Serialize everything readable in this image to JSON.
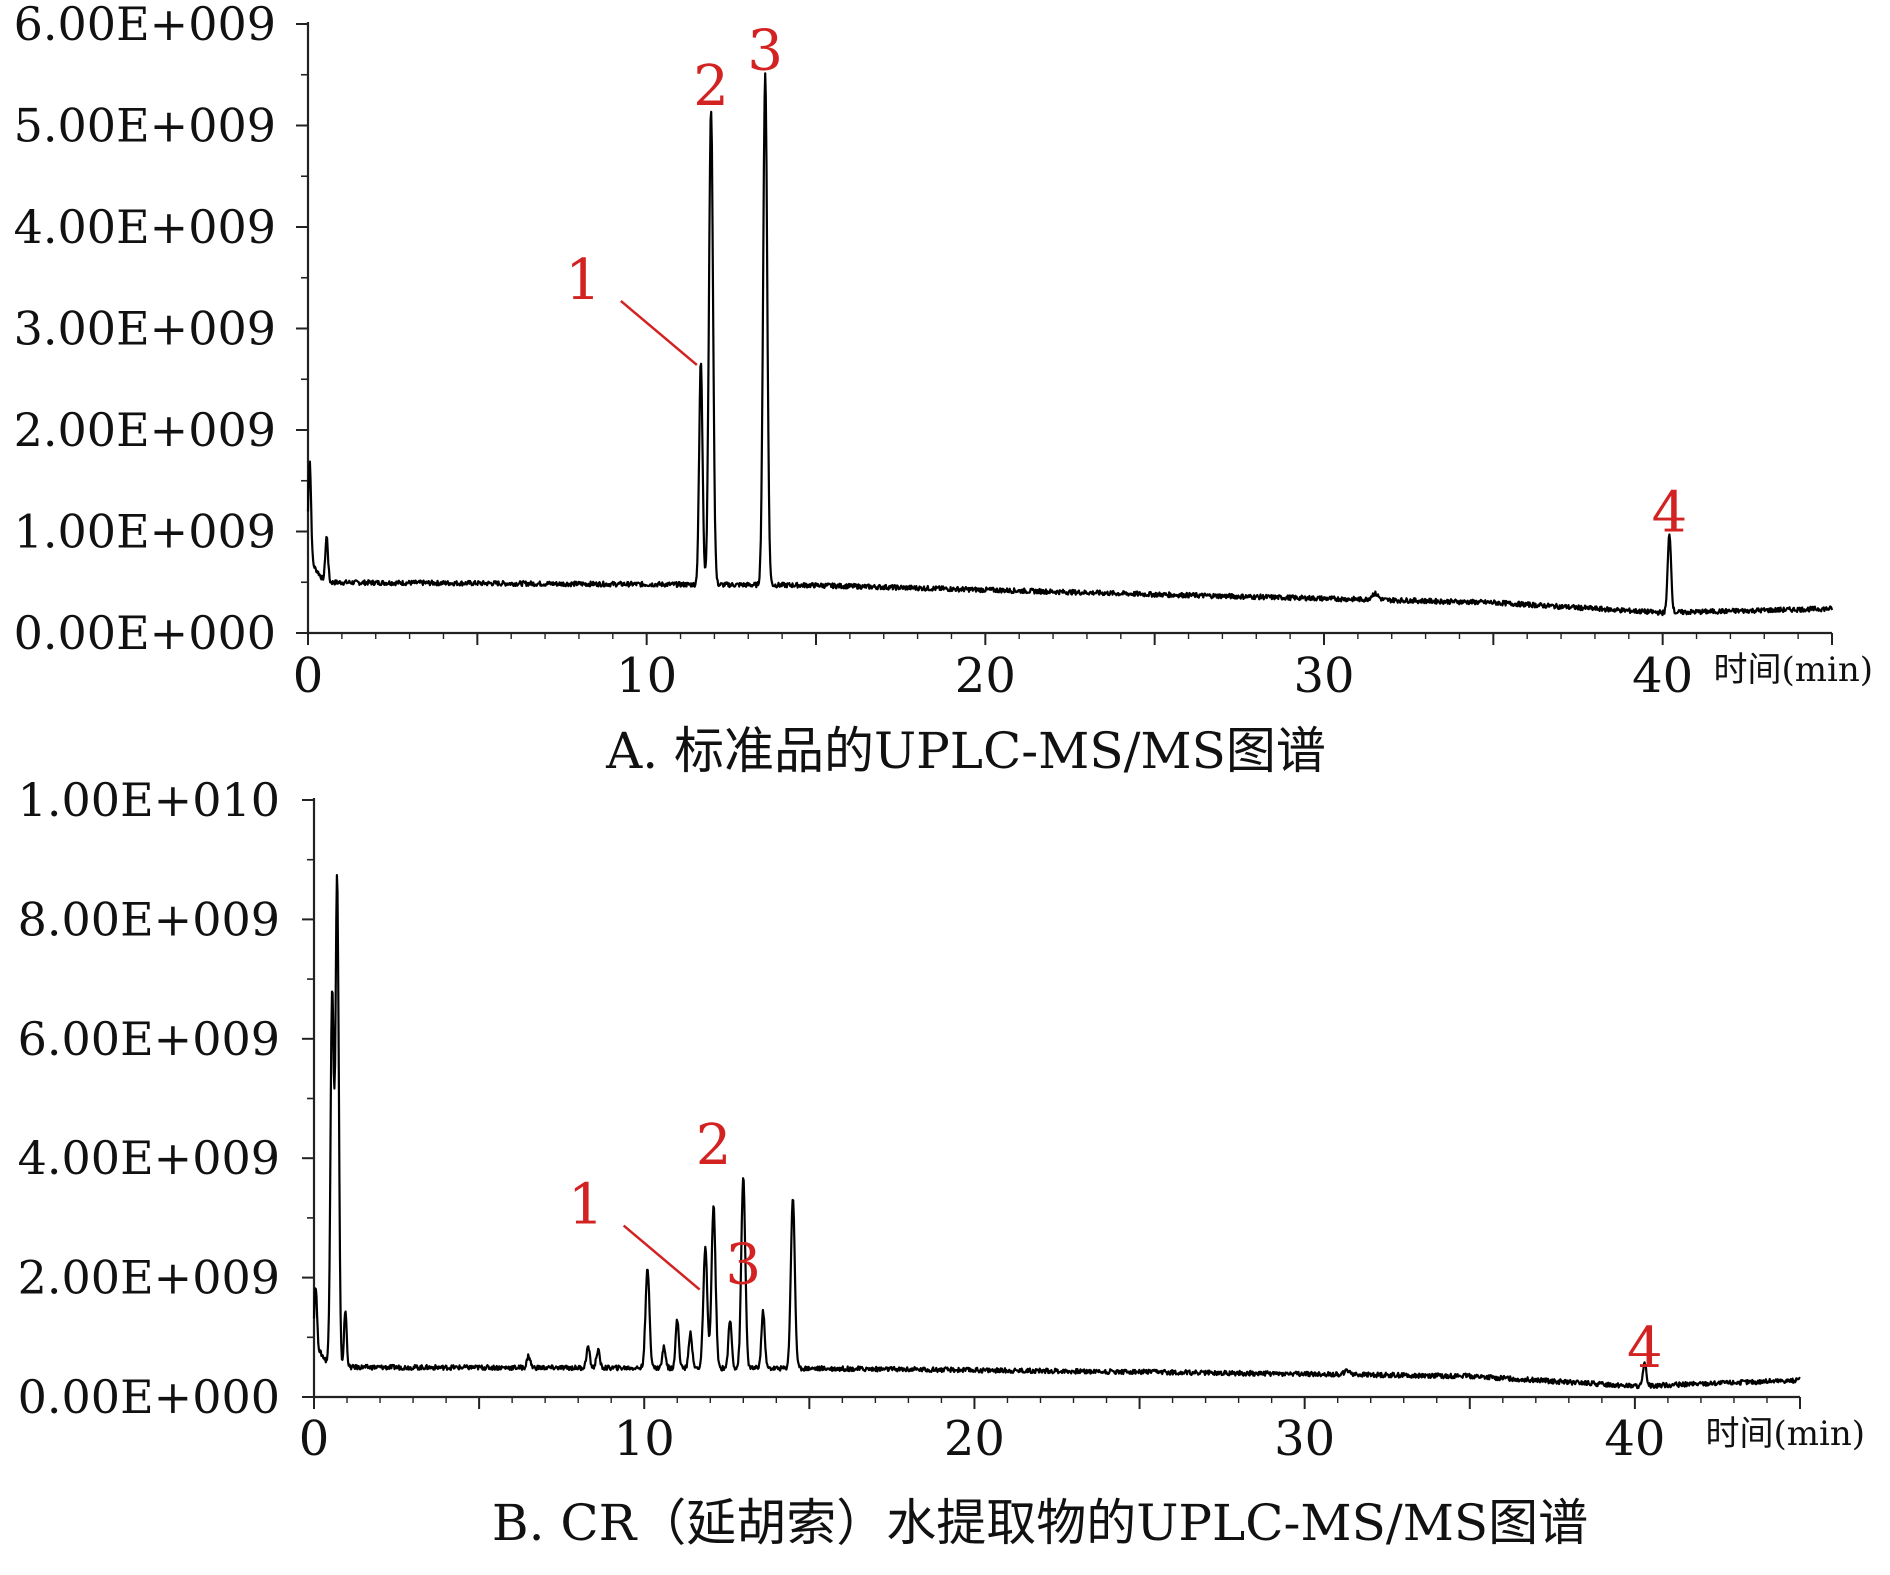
{
  "colors": {
    "trace": "#000000",
    "annotation": "#d32222",
    "axis": "#222222"
  },
  "chart_data": [
    {
      "type": "line",
      "title": "",
      "caption": "A. 标准品的UPLC-MS/MS图谱",
      "xlabel": "时间(min)",
      "ylabel": "",
      "xlim": [
        0,
        45
      ],
      "ylim": [
        0,
        6000000000
      ],
      "x_ticks": [
        "0",
        "10",
        "20",
        "30",
        "40"
      ],
      "y_ticks": [
        "0.00E+000",
        "1.00E+009",
        "2.00E+009",
        "3.00E+009",
        "4.00E+009",
        "5.00E+009",
        "6.00E+009"
      ],
      "grid": false,
      "baseline": [
        [
          0,
          500000000
        ],
        [
          15,
          470000000
        ],
        [
          25,
          380000000
        ],
        [
          35,
          300000000
        ],
        [
          40,
          200000000
        ],
        [
          45,
          240000000
        ]
      ],
      "peaks": [
        {
          "x": 0.05,
          "height": 1000000000,
          "width": 0.04
        },
        {
          "x": 0.55,
          "height": 450000000,
          "width": 0.04
        },
        {
          "x": 11.6,
          "height": 2200000000,
          "width": 0.05
        },
        {
          "x": 11.9,
          "height": 4700000000,
          "width": 0.06
        },
        {
          "x": 13.5,
          "height": 5050000000,
          "width": 0.06
        },
        {
          "x": 31.5,
          "height": 60000000,
          "width": 0.1
        },
        {
          "x": 40.2,
          "height": 780000000,
          "width": 0.05
        }
      ],
      "peak_labels": [
        {
          "text": "1",
          "x": 11.6,
          "y": 2700000000,
          "leader": true
        },
        {
          "text": "2",
          "x": 11.9,
          "y": 5200000000
        },
        {
          "text": "3",
          "x": 13.5,
          "y": 5550000000
        },
        {
          "text": "4",
          "x": 40.2,
          "y": 1000000000
        }
      ]
    },
    {
      "type": "line",
      "title": "",
      "caption": "B. CR（延胡索）水提取物的UPLC-MS/MS图谱",
      "xlabel": "时间(min)",
      "ylabel": "",
      "xlim": [
        0,
        45
      ],
      "ylim": [
        0,
        10000000000
      ],
      "x_ticks": [
        "0",
        "10",
        "20",
        "30",
        "40"
      ],
      "y_ticks": [
        "0.00E+000",
        "2.00E+009",
        "4.00E+009",
        "6.00E+009",
        "8.00E+009",
        "1.00E+010"
      ],
      "grid": false,
      "baseline": [
        [
          0,
          500000000
        ],
        [
          15,
          480000000
        ],
        [
          25,
          420000000
        ],
        [
          35,
          350000000
        ],
        [
          40,
          180000000
        ],
        [
          45,
          280000000
        ]
      ],
      "peaks": [
        {
          "x": 0.05,
          "height": 1000000000,
          "width": 0.04
        },
        {
          "x": 0.55,
          "height": 6300000000,
          "width": 0.05
        },
        {
          "x": 0.7,
          "height": 8200000000,
          "width": 0.05
        },
        {
          "x": 0.95,
          "height": 950000000,
          "width": 0.04
        },
        {
          "x": 6.5,
          "height": 200000000,
          "width": 0.05
        },
        {
          "x": 8.3,
          "height": 350000000,
          "width": 0.05
        },
        {
          "x": 8.6,
          "height": 300000000,
          "width": 0.05
        },
        {
          "x": 10.1,
          "height": 1650000000,
          "width": 0.06
        },
        {
          "x": 10.6,
          "height": 350000000,
          "width": 0.05
        },
        {
          "x": 11.0,
          "height": 800000000,
          "width": 0.05
        },
        {
          "x": 11.4,
          "height": 600000000,
          "width": 0.05
        },
        {
          "x": 11.85,
          "height": 2000000000,
          "width": 0.06
        },
        {
          "x": 12.1,
          "height": 2700000000,
          "width": 0.06
        },
        {
          "x": 12.6,
          "height": 800000000,
          "width": 0.05
        },
        {
          "x": 13.0,
          "height": 3200000000,
          "width": 0.06
        },
        {
          "x": 13.6,
          "height": 950000000,
          "width": 0.05
        },
        {
          "x": 14.5,
          "height": 2850000000,
          "width": 0.06
        },
        {
          "x": 31.3,
          "height": 60000000,
          "width": 0.1
        },
        {
          "x": 40.3,
          "height": 380000000,
          "width": 0.05
        }
      ],
      "peak_labels": [
        {
          "text": "1",
          "x": 11.8,
          "y": 1900000000,
          "leader": true
        },
        {
          "text": "2",
          "x": 12.1,
          "y": 3900000000
        },
        {
          "text": "3",
          "x": 13.0,
          "y": 1900000000
        },
        {
          "text": "4",
          "x": 40.3,
          "y": 500000000
        }
      ]
    }
  ]
}
